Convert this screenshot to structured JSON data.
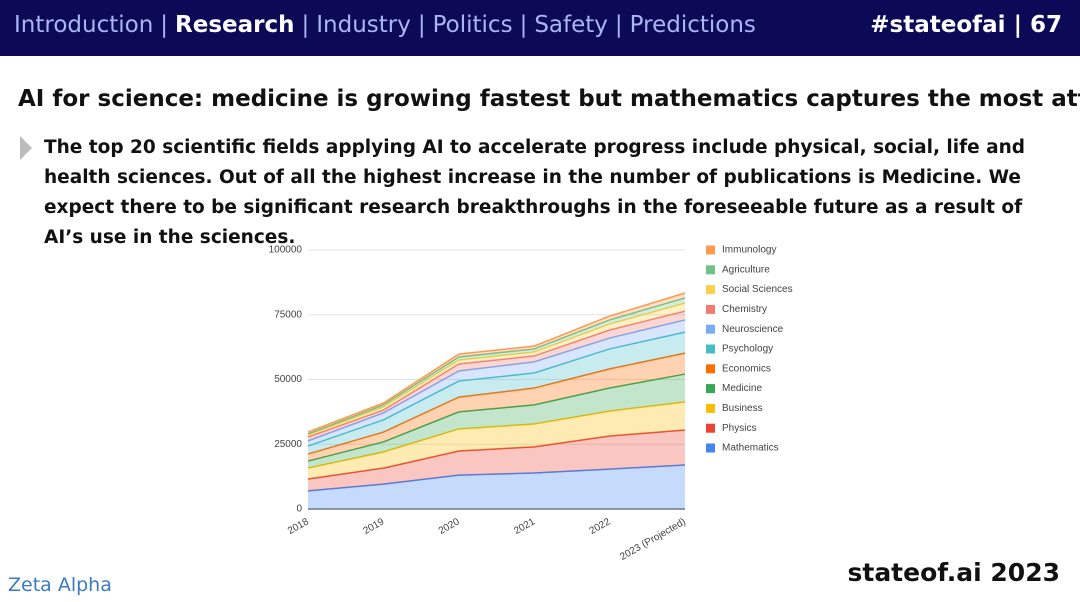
{
  "header": {
    "nav": [
      "Introduction",
      "Research",
      "Industry",
      "Politics",
      "Safety",
      "Predictions"
    ],
    "nav_separator": "|",
    "tag": "#stateofai | 67"
  },
  "title": "AI for science: medicine is growing fastest but mathematics captures the most attention",
  "bullet": "The top 20 scientific fields applying AI to accelerate progress include physical, social, life and health sciences. Out of all the highest increase in the number of publications is Medicine. We expect there to be significant research breakthroughs in the foreseeable future as a result of AI’s use in the sciences.",
  "footer": {
    "logo": "Zeta Alpha",
    "brand": "stateof.ai 2023"
  },
  "chart_data": {
    "type": "stacked_area",
    "categories": [
      "2018",
      "2019",
      "2020",
      "2021",
      "2022",
      "2023 (Projected)"
    ],
    "ylim": [
      0,
      100000
    ],
    "yticks": [
      0,
      25000,
      50000,
      75000,
      100000
    ],
    "grid": true,
    "legend": "right",
    "series": [
      {
        "name": "Mathematics",
        "color": "#4285f4",
        "values": [
          7000,
          9600,
          13100,
          13900,
          15400,
          17000
        ]
      },
      {
        "name": "Physics",
        "color": "#ea4335",
        "values": [
          4600,
          6200,
          9300,
          10100,
          12800,
          13500
        ]
      },
      {
        "name": "Business",
        "color": "#fbbc04",
        "values": [
          4200,
          6200,
          8500,
          8800,
          9600,
          10800
        ]
      },
      {
        "name": "Medicine",
        "color": "#34a853",
        "values": [
          2700,
          3900,
          6600,
          7400,
          8900,
          10800
        ]
      },
      {
        "name": "Economics",
        "color": "#ff6d01",
        "values": [
          2700,
          3800,
          5700,
          6500,
          7400,
          8100
        ]
      },
      {
        "name": "Psychology",
        "color": "#46bdc6",
        "values": [
          3100,
          4700,
          6200,
          5800,
          7700,
          8100
        ]
      },
      {
        "name": "Neuroscience",
        "color": "#7baaf7",
        "values": [
          2000,
          2700,
          3900,
          4300,
          4200,
          4700
        ]
      },
      {
        "name": "Chemistry",
        "color": "#f07b72",
        "values": [
          1500,
          1100,
          2700,
          2300,
          3100,
          3400
        ]
      },
      {
        "name": "Social Sciences",
        "color": "#fcd04f",
        "values": [
          800,
          1200,
          1500,
          1500,
          2300,
          3100
        ]
      },
      {
        "name": "Agriculture",
        "color": "#71c287",
        "values": [
          400,
          800,
          1200,
          1200,
          1600,
          2000
        ]
      },
      {
        "name": "Immunology",
        "color": "#ff994d",
        "values": [
          700,
          700,
          1100,
          1100,
          1500,
          1900
        ]
      }
    ]
  }
}
